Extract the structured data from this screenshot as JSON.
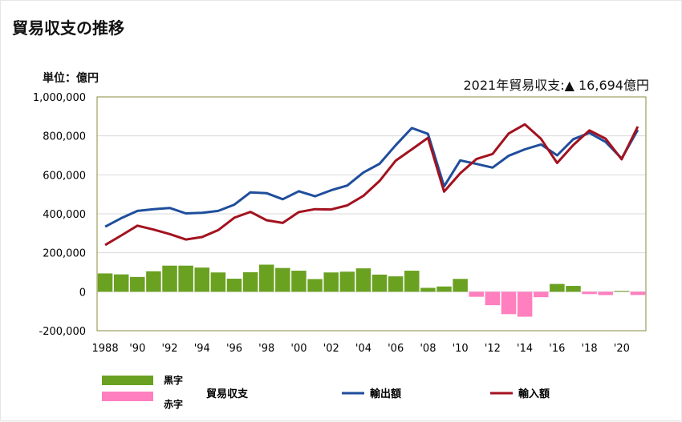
{
  "header": {
    "title": "貿易収支の推移"
  },
  "chart_unit": "単位：億円",
  "note": "2021年貿易収支:▲ 16,694億円",
  "legend": {
    "surplus_label": "黒字",
    "deficit_label": "赤字",
    "balance_label": "貿易収支",
    "exports_label": "輸出額",
    "imports_label": "輸入額"
  },
  "colors": {
    "surplus": "#6aa121",
    "deficit": "#ff7fbf",
    "exports": "#1f4e9c",
    "imports": "#a3121f"
  },
  "chart_data": {
    "type": "bar+line",
    "title": "貿易収支の推移",
    "ylabel": "単位：億円",
    "ylim": [
      -200000,
      1000000
    ],
    "yticks": [
      -200000,
      0,
      200000,
      400000,
      600000,
      800000,
      1000000
    ],
    "ytick_labels": [
      "-200,000",
      "0",
      "200,000",
      "400,000",
      "600,000",
      "800,000",
      "1,000,000"
    ],
    "years": [
      1988,
      1989,
      1990,
      1991,
      1992,
      1993,
      1994,
      1995,
      1996,
      1997,
      1998,
      1999,
      2000,
      2001,
      2002,
      2003,
      2004,
      2005,
      2006,
      2007,
      2008,
      2009,
      2010,
      2011,
      2012,
      2013,
      2014,
      2015,
      2016,
      2017,
      2018,
      2019,
      2020,
      2021
    ],
    "xtick_labels": [
      "1988",
      "'90",
      "'92",
      "'94",
      "'96",
      "'98",
      "'00",
      "'02",
      "'04",
      "'06",
      "'08",
      "'10",
      "'12",
      "'14",
      "'16",
      "'18",
      "'20"
    ],
    "series": [
      {
        "name": "輸出額",
        "type": "line",
        "values": [
          334000,
          378000,
          415000,
          424000,
          430000,
          402000,
          405000,
          415000,
          447000,
          510000,
          506000,
          475000,
          516000,
          490000,
          521000,
          545000,
          612000,
          657000,
          752000,
          840000,
          810000,
          541000,
          674000,
          656000,
          637000,
          698000,
          731000,
          756000,
          700000,
          783000,
          815000,
          769000,
          684000,
          831000
        ]
      },
      {
        "name": "輸入額",
        "type": "line",
        "values": [
          240000,
          289000,
          339000,
          319000,
          296000,
          268000,
          281000,
          316000,
          380000,
          410000,
          367000,
          353000,
          409000,
          424000,
          422000,
          443000,
          492000,
          569000,
          673000,
          731000,
          790000,
          514000,
          608000,
          681000,
          707000,
          812000,
          859000,
          785000,
          661000,
          753000,
          828000,
          786000,
          680000,
          848000
        ]
      },
      {
        "name": "貿易収支",
        "type": "bar",
        "values": [
          94000,
          89000,
          76000,
          105000,
          134000,
          134000,
          124000,
          99000,
          67000,
          100000,
          139000,
          122000,
          108000,
          65000,
          99000,
          103000,
          120000,
          88000,
          79000,
          108000,
          20000,
          27000,
          66000,
          -26000,
          -69000,
          -115000,
          -128000,
          -28000,
          40000,
          30000,
          -12000,
          -17000,
          4000,
          -16694
        ]
      }
    ]
  }
}
